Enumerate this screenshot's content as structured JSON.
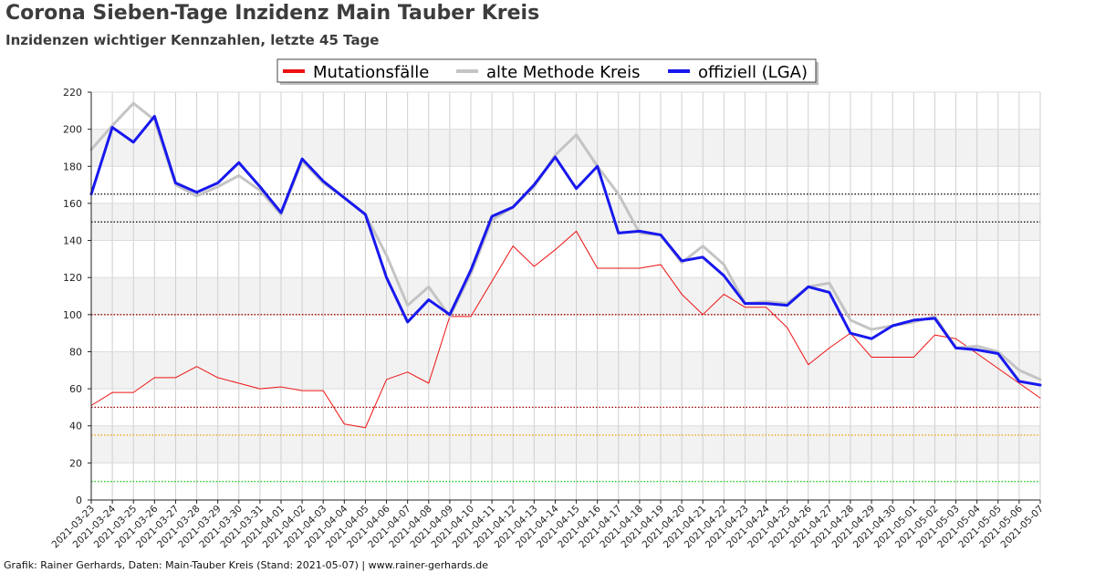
{
  "header": {
    "title": "Corona Sieben-Tage Inzidenz Main Tauber Kreis",
    "subtitle": "Inzidenzen wichtiger Kennzahlen, letzte 45 Tage"
  },
  "footer": {
    "credit": "Grafik: Rainer Gerhards, Daten: Main-Tauber Kreis (Stand: 2021-05-07) | www.rainer-gerhards.de"
  },
  "chart_data": {
    "type": "line",
    "title": "Corona Sieben-Tage Inzidenz Main Tauber Kreis",
    "subtitle": "Inzidenzen wichtiger Kennzahlen, letzte 45 Tage",
    "xlabel": "",
    "ylabel": "",
    "ylim": [
      0,
      220
    ],
    "yticks": [
      0,
      20,
      40,
      60,
      80,
      100,
      120,
      140,
      160,
      180,
      200,
      220
    ],
    "grid": true,
    "legend_position": "top-center",
    "x": [
      "2021-03-23",
      "2021-03-24",
      "2021-03-25",
      "2021-03-26",
      "2021-03-27",
      "2021-03-28",
      "2021-03-29",
      "2021-03-30",
      "2021-03-31",
      "2021-04-01",
      "2021-04-02",
      "2021-04-03",
      "2021-04-04",
      "2021-04-05",
      "2021-04-06",
      "2021-04-07",
      "2021-04-08",
      "2021-04-09",
      "2021-04-10",
      "2021-04-11",
      "2021-04-12",
      "2021-04-13",
      "2021-04-14",
      "2021-04-15",
      "2021-04-16",
      "2021-04-17",
      "2021-04-18",
      "2021-04-19",
      "2021-04-20",
      "2021-04-21",
      "2021-04-22",
      "2021-04-23",
      "2021-04-24",
      "2021-04-25",
      "2021-04-26",
      "2021-04-27",
      "2021-04-28",
      "2021-04-29",
      "2021-04-30",
      "2021-05-01",
      "2021-05-02",
      "2021-05-03",
      "2021-05-04",
      "2021-05-05",
      "2021-05-06",
      "2021-05-07"
    ],
    "series": [
      {
        "name": "Mutationsfälle",
        "color": "#ee1111",
        "width": 1,
        "values": [
          51,
          58,
          58,
          66,
          66,
          72,
          66,
          63,
          60,
          61,
          59,
          59,
          41,
          39,
          65,
          69,
          63,
          99,
          99,
          118,
          137,
          126,
          135,
          145,
          125,
          125,
          125,
          127,
          111,
          100,
          111,
          104,
          104,
          93,
          73,
          82,
          90,
          77,
          77,
          77,
          89,
          87,
          79,
          71,
          63,
          55
        ]
      },
      {
        "name": "alte Methode Kreis",
        "color": "#c4c4c4",
        "width": 3,
        "values": [
          189,
          202,
          214,
          205,
          170,
          164,
          169,
          175,
          167,
          154,
          183,
          171,
          163,
          154,
          132,
          105,
          115,
          99,
          122,
          151,
          158,
          169,
          186,
          197,
          180,
          165,
          144,
          143,
          128,
          137,
          127,
          106,
          107,
          106,
          115,
          117,
          97,
          92,
          94,
          96,
          99,
          82,
          83,
          80,
          70,
          65
        ]
      },
      {
        "name": "offiziell (LGA)",
        "color": "#1818ee",
        "width": 3,
        "values": [
          165,
          201,
          193,
          207,
          171,
          166,
          171,
          182,
          169,
          155,
          184,
          172,
          163,
          154,
          120,
          96,
          108,
          100,
          124,
          153,
          158,
          170,
          185,
          168,
          180,
          144,
          145,
          143,
          129,
          131,
          121,
          106,
          106,
          105,
          115,
          112,
          90,
          87,
          94,
          97,
          98,
          82,
          81,
          79,
          64,
          62
        ]
      }
    ],
    "reference_lines": [
      {
        "value": 165,
        "color": "#000000"
      },
      {
        "value": 150,
        "color": "#000000"
      },
      {
        "value": 100,
        "color": "#a00000"
      },
      {
        "value": 50,
        "color": "#a00000"
      },
      {
        "value": 35,
        "color": "#f0a000"
      },
      {
        "value": 10,
        "color": "#22cc22"
      }
    ]
  }
}
